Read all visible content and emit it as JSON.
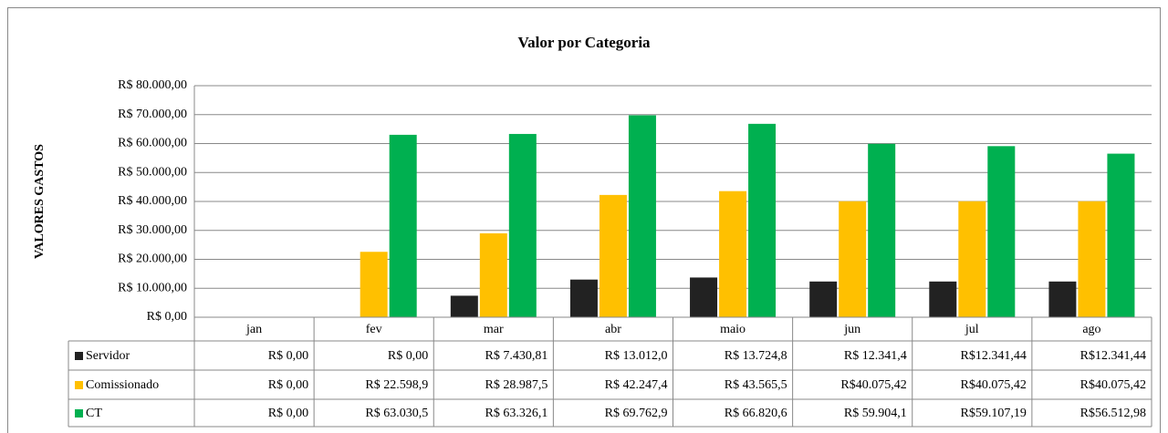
{
  "chart_data": {
    "type": "bar",
    "title": "Valor por Categoria",
    "y_label": "VALORES GASTOS",
    "categories": [
      "jan",
      "fev",
      "mar",
      "abr",
      "maio",
      "jun",
      "jul",
      "ago"
    ],
    "series": [
      {
        "name": "Servidor",
        "color": "#222222",
        "values": [
          0,
          0,
          7430.81,
          13012.0,
          13724.8,
          12341.4,
          12341.44,
          12341.44
        ],
        "value_labels": [
          "R$ 0,00",
          "R$ 0,00",
          "R$ 7.430,81",
          "R$ 13.012,0",
          "R$ 13.724,8",
          "R$ 12.341,4",
          "R$12.341,44",
          "R$12.341,44"
        ]
      },
      {
        "name": "Comissionado",
        "color": "#ffc000",
        "values": [
          0,
          22598.9,
          28987.5,
          42247.4,
          43565.5,
          40075.42,
          40075.42,
          40075.42
        ],
        "value_labels": [
          "R$ 0,00",
          "R$ 22.598,9",
          "R$ 28.987,5",
          "R$ 42.247,4",
          "R$ 43.565,5",
          "R$40.075,42",
          "R$40.075,42",
          "R$40.075,42"
        ]
      },
      {
        "name": "CT",
        "color": "#00b050",
        "values": [
          0,
          63030.5,
          63326.1,
          69762.9,
          66820.6,
          59904.1,
          59107.19,
          56512.98
        ],
        "value_labels": [
          "R$ 0,00",
          "R$ 63.030,5",
          "R$ 63.326,1",
          "R$ 69.762,9",
          "R$ 66.820,6",
          "R$ 59.904,1",
          "R$59.107,19",
          "R$56.512,98"
        ]
      }
    ],
    "ylim": [
      0,
      80000
    ],
    "yticks": [
      {
        "value": 0,
        "label": "R$ 0,00"
      },
      {
        "value": 10000,
        "label": "R$ 10.000,00"
      },
      {
        "value": 20000,
        "label": "R$ 20.000,00"
      },
      {
        "value": 30000,
        "label": "R$ 30.000,00"
      },
      {
        "value": 40000,
        "label": "R$ 40.000,00"
      },
      {
        "value": 50000,
        "label": "R$ 50.000,00"
      },
      {
        "value": 60000,
        "label": "R$ 60.000,00"
      },
      {
        "value": 70000,
        "label": "R$ 70.000,00"
      },
      {
        "value": 80000,
        "label": "R$ 80.000,00"
      }
    ],
    "grid": true
  }
}
